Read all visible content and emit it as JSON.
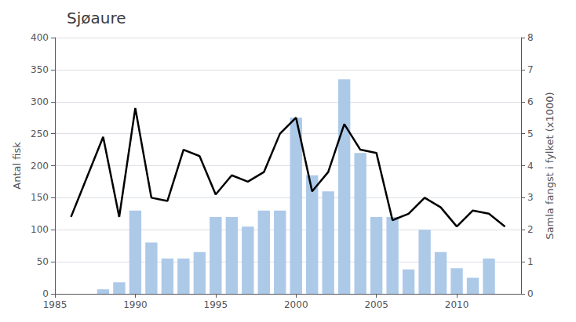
{
  "chart_data": {
    "type": "bar",
    "title": "Sjøaure",
    "ylabel": "Antal fisk",
    "y2label": "Samla fangst i fylket (x1000)",
    "xlim": [
      1985,
      2014
    ],
    "xticks": [
      1985,
      1990,
      1995,
      2000,
      2005,
      2010
    ],
    "ylim": [
      0,
      400
    ],
    "yticks": [
      0,
      50,
      100,
      150,
      200,
      250,
      300,
      350,
      400
    ],
    "y2lim": [
      0,
      8
    ],
    "y2ticks": [
      0,
      1,
      2,
      3,
      4,
      5,
      6,
      7,
      8
    ],
    "grid": true,
    "series": [
      {
        "type": "bar",
        "color": "#adc9e8",
        "x": [
          1988,
          1989,
          1990,
          1991,
          1992,
          1993,
          1994,
          1995,
          1996,
          1997,
          1998,
          1999,
          2000,
          2001,
          2002,
          2003,
          2004,
          2005,
          2006,
          2007,
          2008,
          2009,
          2010,
          2011,
          2012,
          2013
        ],
        "values": [
          7,
          18,
          130,
          80,
          55,
          55,
          65,
          120,
          120,
          105,
          130,
          130,
          275,
          185,
          160,
          335,
          220,
          120,
          120,
          38,
          100,
          65,
          40,
          25,
          55,
          0
        ]
      },
      {
        "type": "line",
        "axis": "y2",
        "color": "#000000",
        "x": [
          1986,
          1988,
          1989,
          1990,
          1991,
          1992,
          1993,
          1994,
          1995,
          1996,
          1997,
          1998,
          1999,
          2000,
          2001,
          2002,
          2003,
          2004,
          2005,
          2006,
          2007,
          2008,
          2009,
          2010,
          2011,
          2012,
          2013
        ],
        "values": [
          2.4,
          4.9,
          2.4,
          5.8,
          3.0,
          2.9,
          4.5,
          4.3,
          3.1,
          3.7,
          3.5,
          3.8,
          5.0,
          5.5,
          3.2,
          3.8,
          5.3,
          4.5,
          4.4,
          2.3,
          2.5,
          3.0,
          2.7,
          2.1,
          2.6,
          2.5,
          2.1
        ]
      }
    ]
  }
}
